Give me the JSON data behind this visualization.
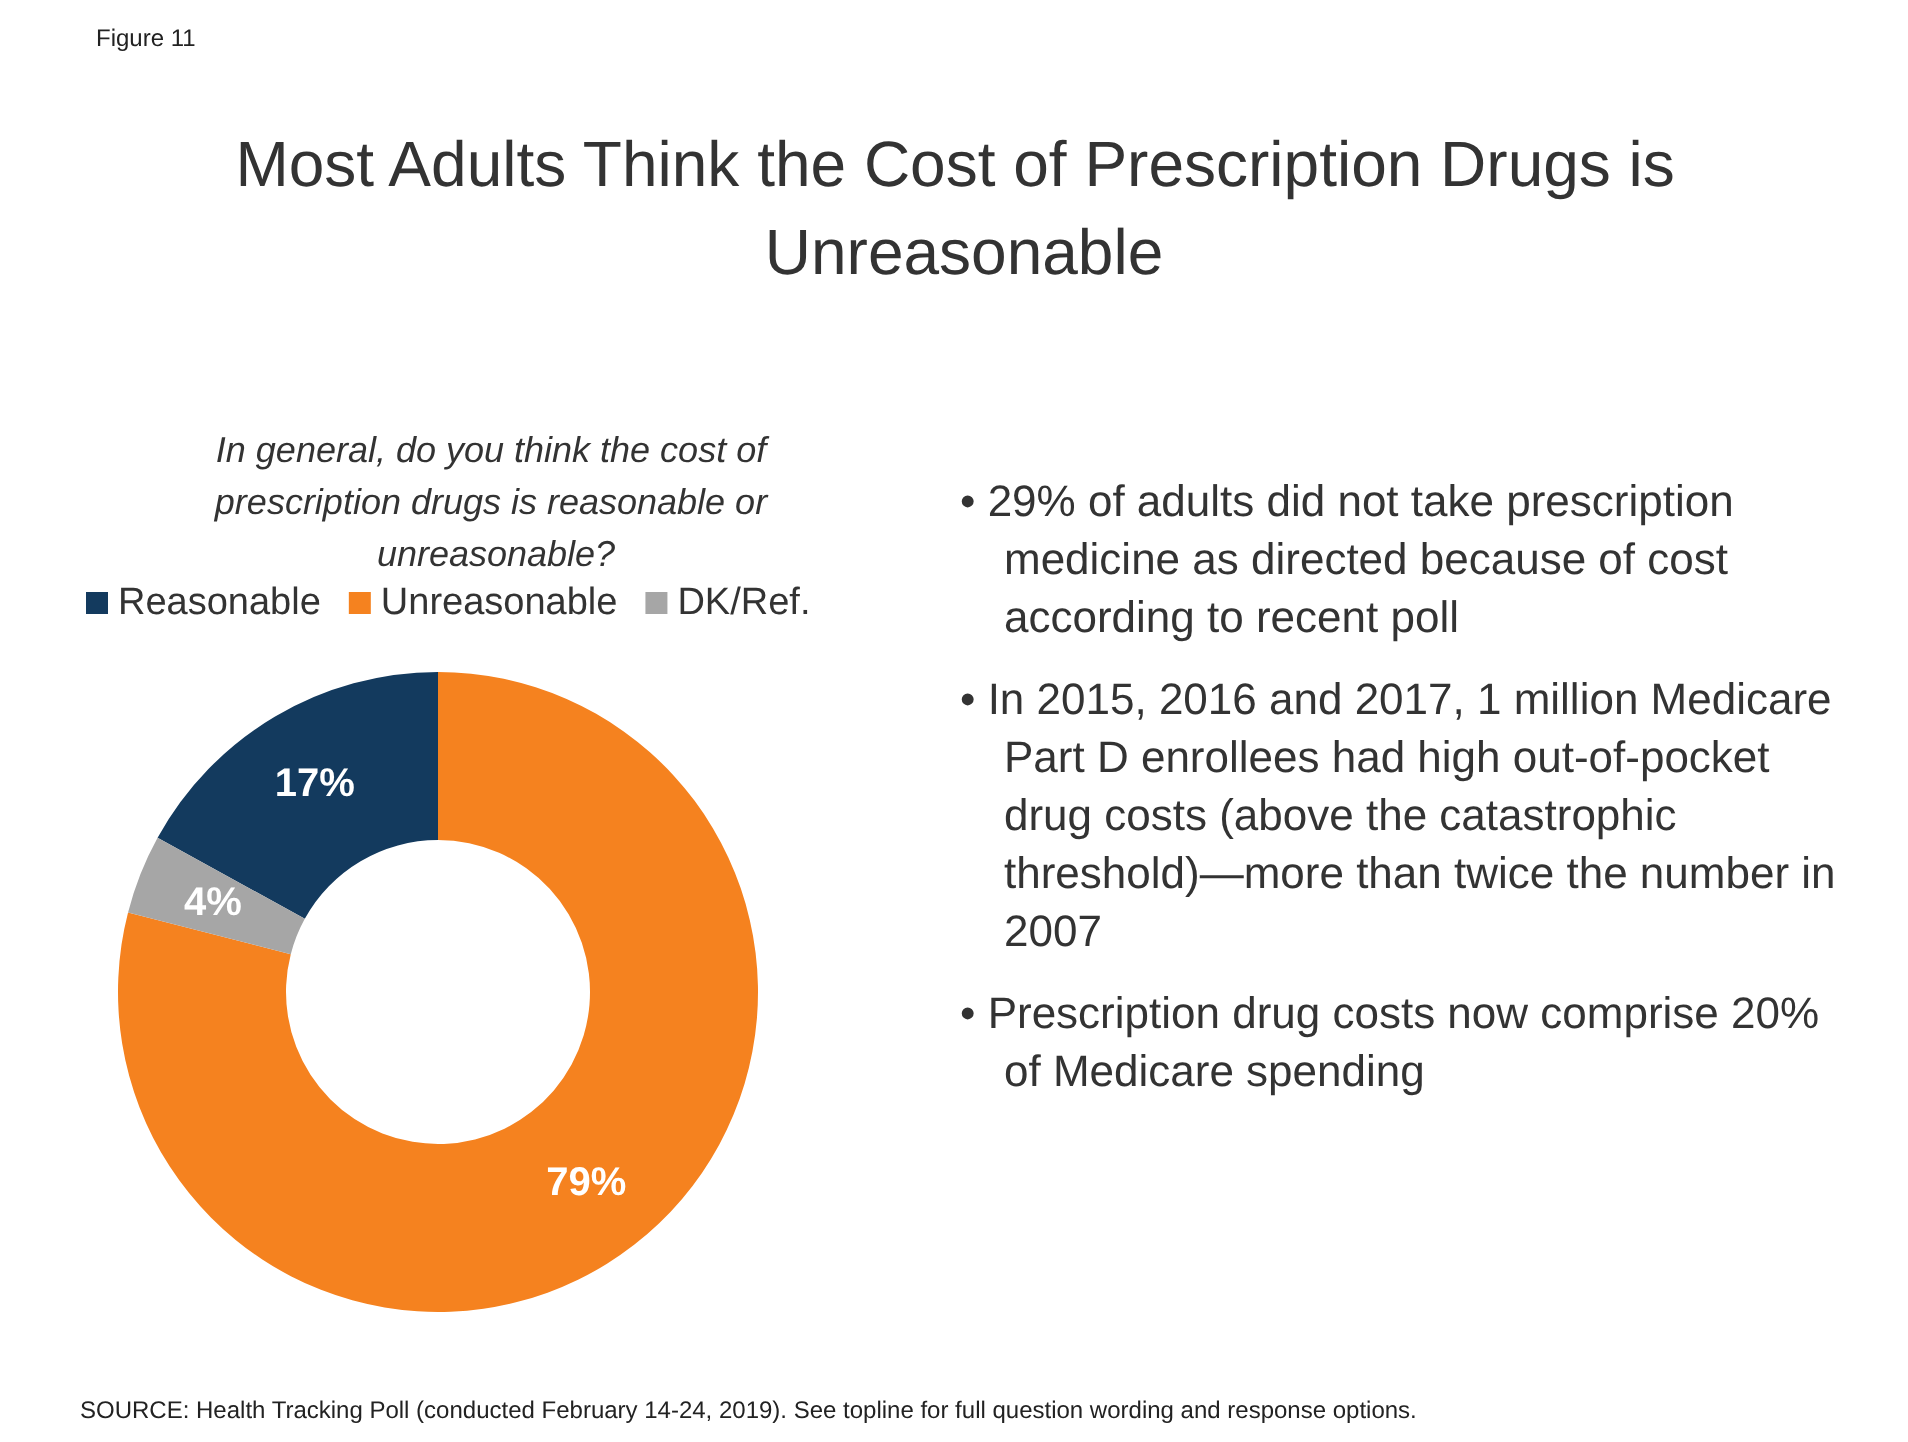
{
  "chart_data": {
    "type": "donut",
    "title": "Most Adults Think the Cost of Prescription Drugs is Unreasonable",
    "subtitle": "In general, do you think the cost of prescription drugs is reasonable or unreasonable?",
    "categories": [
      "Reasonable",
      "Unreasonable",
      "DK/Ref."
    ],
    "values": [
      17,
      79,
      4
    ],
    "value_labels": [
      "17%",
      "79%",
      "4%"
    ],
    "colors": [
      "#133a5e",
      "#f5821f",
      "#a6a6a6"
    ],
    "legend": "top",
    "annotations": [
      "Figure 11",
      "• 29% of adults did not take prescription medicine as directed because of cost according to recent poll",
      "• In 2015, 2016 and 2017, 1 million Medicare Part D enrollees had high out-of-pocket drug costs (above the catastrophic threshold)—more than twice the number in 2007",
      "• Prescription drug costs now comprise 20% of Medicare spending",
      "SOURCE: Health Tracking Poll (conducted February 14-24, 2019). See topline for full question wording and response options."
    ]
  }
}
